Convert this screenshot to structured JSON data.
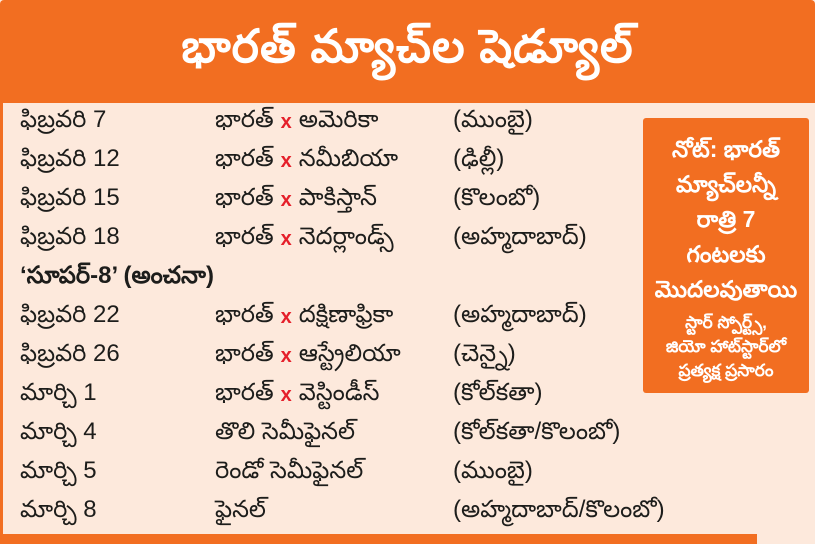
{
  "header": {
    "title": "భారత్ మ్యాచ్‌ల షెడ్యూల్"
  },
  "colors": {
    "orange": "#f26e21",
    "background": "#fde9dc",
    "text": "#1d1d1b",
    "vs_red": "#e51f2a",
    "title_white": "#ffffff"
  },
  "schedule": {
    "section_header": "‘సూపర్-8’ (అంచనా)",
    "rows": [
      {
        "date": "ఫిబ్రవరి 7",
        "team1": "భారత్",
        "vs": "x",
        "team2": "అమెరికా",
        "venue": "(ముంబై)"
      },
      {
        "date": "ఫిబ్రవరి 12",
        "team1": "భారత్",
        "vs": "x",
        "team2": "నమీబియా",
        "venue": "(ఢిల్లీ)"
      },
      {
        "date": "ఫిబ్రవరి 15",
        "team1": "భారత్",
        "vs": "x",
        "team2": "పాకిస్తాన్",
        "venue": "(కొలంబో)"
      },
      {
        "date": "ఫిబ్రవరి 18",
        "team1": "భారత్",
        "vs": "x",
        "team2": "నెదర్లాండ్స్",
        "venue": "(అహ్మదాబాద్)"
      },
      {
        "date": "ఫిబ్రవరి 22",
        "team1": "భారత్",
        "vs": "x",
        "team2": "దక్షిణాఫ్రికా",
        "venue": "(అహ్మదాబాద్)"
      },
      {
        "date": "ఫిబ్రవరి 26",
        "team1": "భారత్",
        "vs": "x",
        "team2": "ఆస్ట్రేలియా",
        "venue": "(చెన్నై)"
      },
      {
        "date": "మార్చి 1",
        "team1": "భారత్",
        "vs": "x",
        "team2": "వెస్టిండీస్",
        "venue": "(కోల్‌కతా)"
      },
      {
        "date": "మార్చి 4",
        "team1": "తొలి సెమీఫైనల్",
        "vs": "",
        "team2": "",
        "venue": "(కోల్‌కతా/కొలంబో)"
      },
      {
        "date": "మార్చి 5",
        "team1": "రెండో సెమీఫైనల్",
        "vs": "",
        "team2": "",
        "venue": "(ముంబై)"
      },
      {
        "date": "మార్చి 8",
        "team1": "ఫైనల్",
        "vs": "",
        "team2": "",
        "venue": "(అహ్మదాబాద్/కొలంబో)"
      }
    ]
  },
  "note": {
    "main_lines": [
      "నోట్: భారత్",
      "మ్యాచ్‌లన్నీ",
      "రాత్రి 7",
      "గంటలకు",
      "మొదలవుతాయి"
    ],
    "sub_lines": [
      "స్టార్ స్పోర్ట్స్,",
      "జియో హాట్‌స్టార్‌లో",
      "ప్రత్యక్ష ప్రసారం"
    ]
  }
}
